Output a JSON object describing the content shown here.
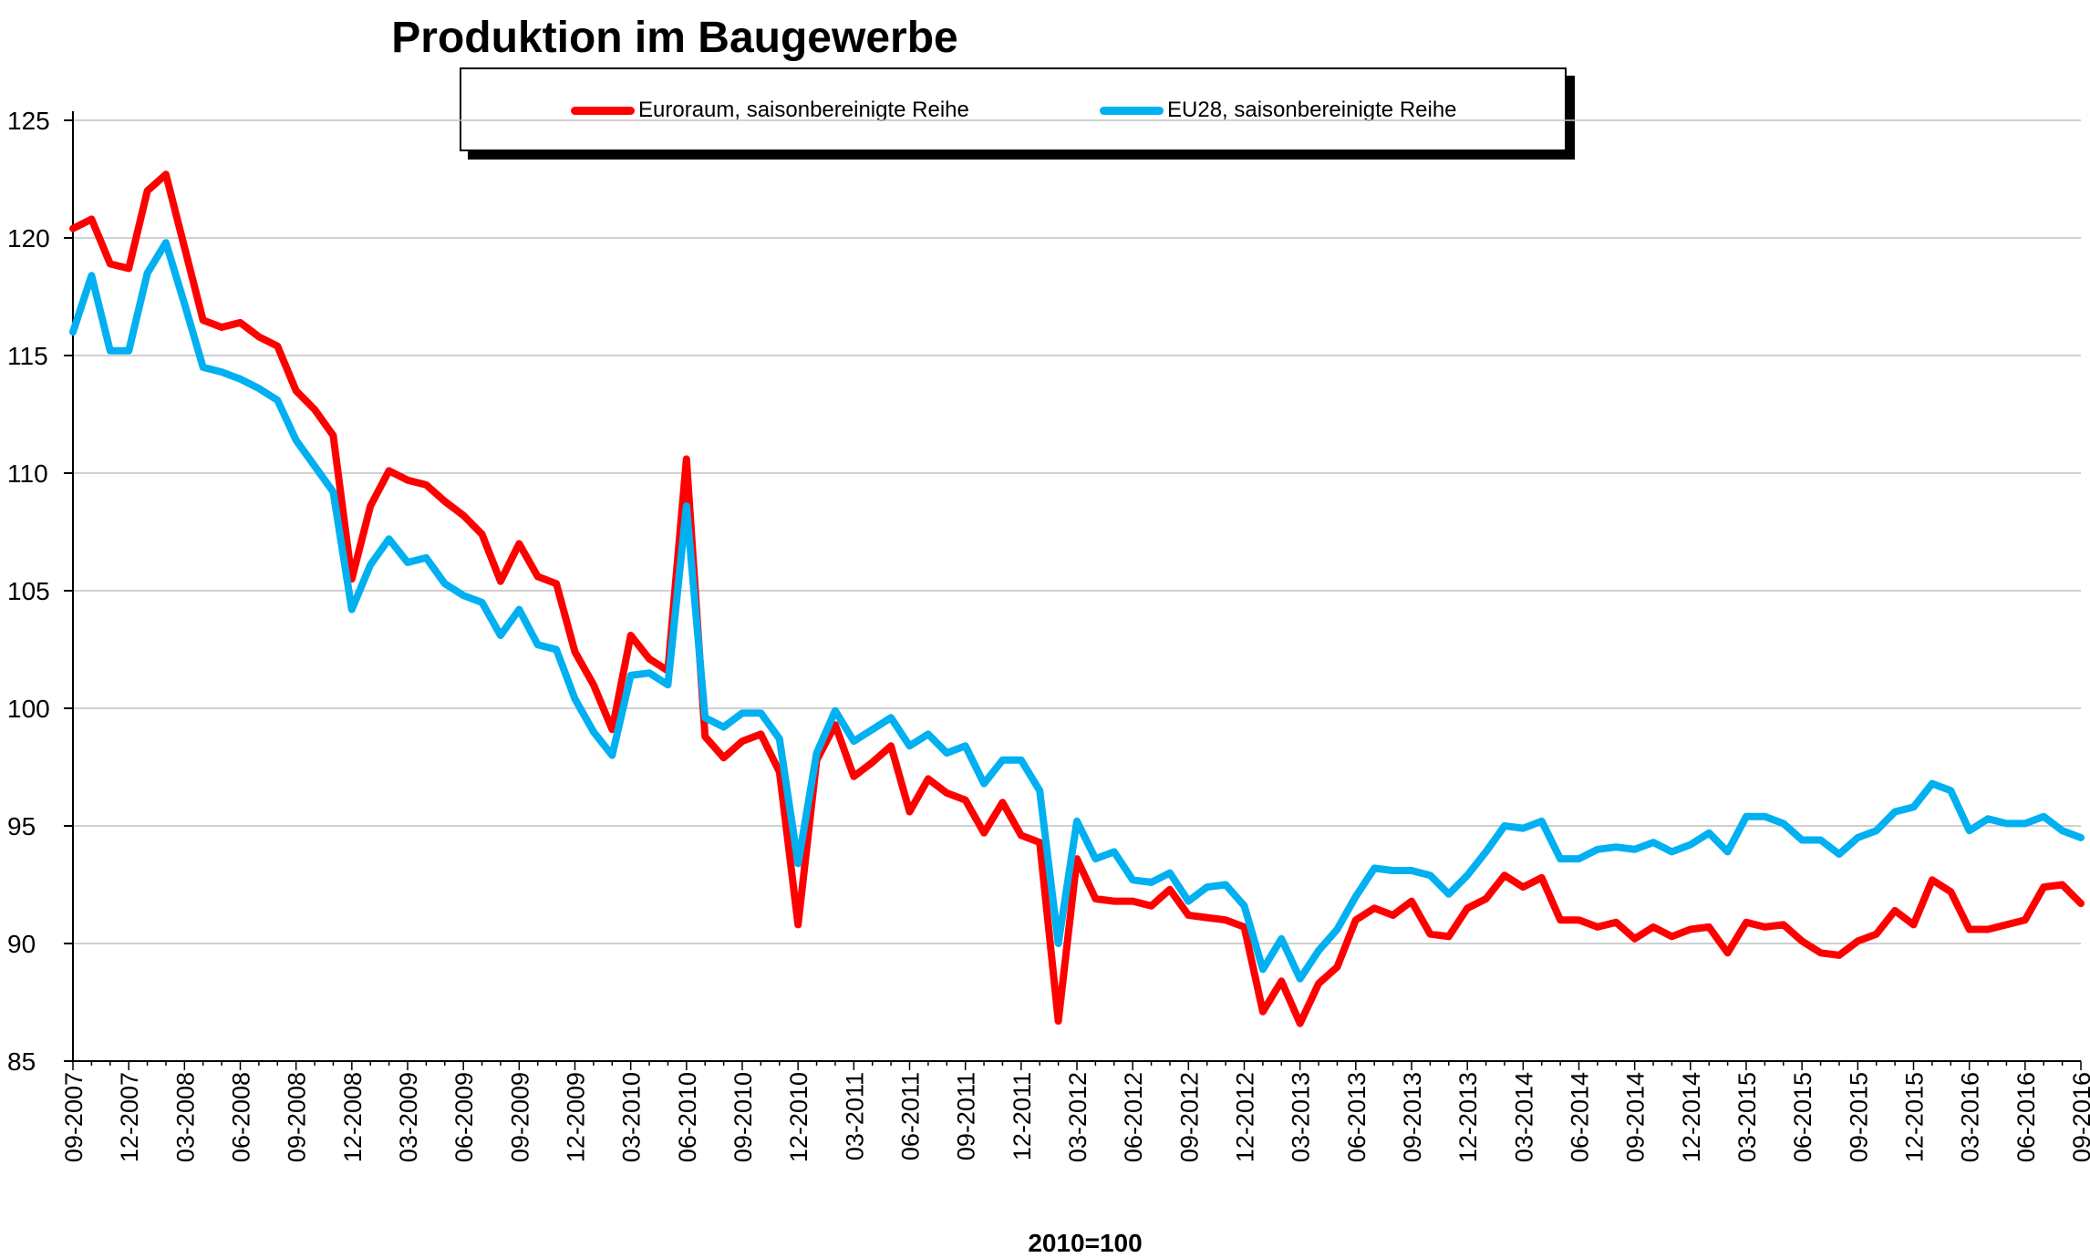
{
  "chart_data": {
    "type": "line",
    "title": "Produktion im Baugewerbe",
    "xlabel": "2010=100",
    "ylabel": "",
    "ylim": [
      85,
      125
    ],
    "yticks": [
      85,
      90,
      95,
      100,
      105,
      110,
      115,
      120,
      125
    ],
    "grid": true,
    "legend_position": "top",
    "start_month": "09-2007",
    "end_month": "09-2016",
    "xtick_labels": [
      "09-2007",
      "12-2007",
      "03-2008",
      "06-2008",
      "09-2008",
      "12-2008",
      "03-2009",
      "06-2009",
      "09-2009",
      "12-2009",
      "03-2010",
      "06-2010",
      "09-2010",
      "12-2010",
      "03-2011",
      "06-2011",
      "09-2011",
      "12-2011",
      "03-2012",
      "06-2012",
      "09-2012",
      "12-2012",
      "03-2013",
      "06-2013",
      "09-2013",
      "12-2013",
      "03-2014",
      "06-2014",
      "09-2014",
      "12-2014",
      "03-2015",
      "06-2015",
      "09-2015",
      "12-2015",
      "03-2016",
      "06-2016",
      "09-2016"
    ],
    "series": [
      {
        "name": "Euroraum, saisonbereinigte Reihe",
        "color": "#ff0000",
        "values": [
          120.4,
          120.8,
          118.9,
          118.7,
          122.0,
          122.7,
          119.6,
          116.5,
          116.2,
          116.4,
          115.8,
          115.4,
          113.5,
          112.7,
          111.6,
          105.5,
          108.6,
          110.1,
          109.7,
          109.5,
          108.8,
          108.2,
          107.4,
          105.4,
          107.0,
          105.6,
          105.3,
          102.4,
          101.0,
          99.1,
          103.1,
          102.1,
          101.6,
          110.6,
          98.8,
          97.9,
          98.6,
          98.9,
          97.3,
          90.8,
          97.8,
          99.3,
          97.1,
          97.7,
          98.4,
          95.6,
          97.0,
          96.4,
          96.1,
          94.7,
          96.0,
          94.6,
          94.3,
          86.7,
          93.6,
          91.9,
          91.8,
          91.8,
          91.6,
          92.3,
          91.2,
          91.1,
          91.0,
          90.7,
          87.1,
          88.4,
          86.6,
          88.3,
          89.0,
          91.0,
          91.5,
          91.2,
          91.8,
          90.4,
          90.3,
          91.5,
          91.9,
          92.9,
          92.4,
          92.8,
          91.0,
          91.0,
          90.7,
          90.9,
          90.2,
          90.7,
          90.3,
          90.6,
          90.7,
          89.6,
          90.9,
          90.7,
          90.8,
          90.1,
          89.6,
          89.5,
          90.1,
          90.4,
          91.4,
          90.8,
          92.7,
          92.2,
          90.6,
          90.6,
          90.8,
          91.0,
          92.4,
          92.5,
          91.7
        ]
      },
      {
        "name": "EU28, saisonbereinigte Reihe",
        "color": "#00b0f0",
        "values": [
          116.0,
          118.4,
          115.2,
          115.2,
          118.5,
          119.8,
          117.2,
          114.5,
          114.3,
          114.0,
          113.6,
          113.1,
          111.4,
          110.3,
          109.2,
          104.2,
          106.1,
          107.2,
          106.2,
          106.4,
          105.3,
          104.8,
          104.5,
          103.1,
          104.2,
          102.7,
          102.5,
          100.4,
          99.0,
          98.0,
          101.4,
          101.5,
          101.0,
          108.6,
          99.6,
          99.2,
          99.8,
          99.8,
          98.7,
          93.4,
          98.1,
          99.9,
          98.6,
          99.1,
          99.6,
          98.4,
          98.9,
          98.1,
          98.4,
          96.8,
          97.8,
          97.8,
          96.5,
          90.0,
          95.2,
          93.6,
          93.9,
          92.7,
          92.6,
          93.0,
          91.8,
          92.4,
          92.5,
          91.6,
          88.9,
          90.2,
          88.5,
          89.7,
          90.6,
          92.0,
          93.2,
          93.1,
          93.1,
          92.9,
          92.1,
          92.9,
          93.9,
          95.0,
          94.9,
          95.2,
          93.6,
          93.6,
          94.0,
          94.1,
          94.0,
          94.3,
          93.9,
          94.2,
          94.7,
          93.9,
          95.4,
          95.4,
          95.1,
          94.4,
          94.4,
          93.8,
          94.5,
          94.8,
          95.6,
          95.8,
          96.8,
          96.5,
          94.8,
          95.3,
          95.1,
          95.1,
          95.4,
          94.8,
          94.5
        ]
      }
    ]
  }
}
